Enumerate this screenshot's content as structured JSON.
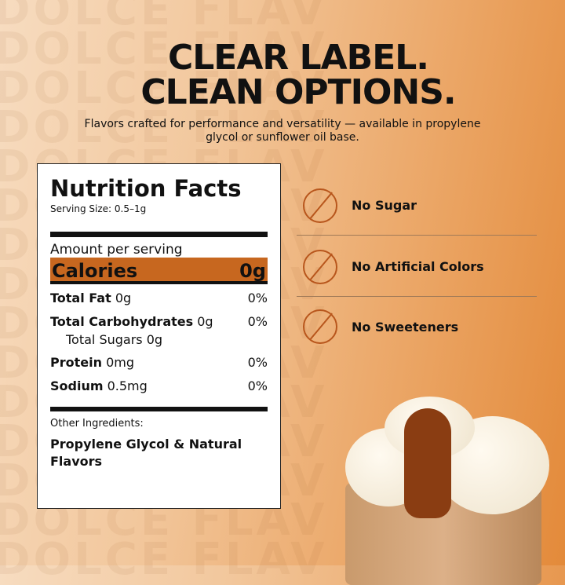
{
  "watermark": "DOLCE FLAV",
  "header": {
    "title_line1": "CLEAR LABEL.",
    "title_line2": "CLEAN OPTIONS.",
    "subtitle": "Flavors crafted for performance and versatility — available in propylene glycol or sunflower oil base."
  },
  "nutrition": {
    "title": "Nutrition Facts",
    "serving_size": "Serving Size: 0.5–1g",
    "amount_per_serving": "Amount per serving",
    "calories_label": "Calories",
    "calories_value": "0g",
    "rows": [
      {
        "label": "Total Fat",
        "value": "0g",
        "dv": "0%"
      },
      {
        "label": "Total Carbohydrates",
        "value": "0g",
        "dv": "0%"
      },
      {
        "label": "Protein",
        "value": "0mg",
        "dv": "0%"
      },
      {
        "label": "Sodium",
        "value": "0.5mg",
        "dv": "0%"
      }
    ],
    "sub_row": "Total Sugars 0g",
    "other_ingredients_label": "Other Ingredients:",
    "ingredients": "Propylene Glycol & Natural Flavors"
  },
  "features": [
    {
      "icon": "no-sugar-icon",
      "label": "No Sugar"
    },
    {
      "icon": "no-artificial-colors-icon",
      "label": "No Artificial Colors"
    },
    {
      "icon": "no-sweeteners-icon",
      "label": "No Sweeteners"
    }
  ],
  "colors": {
    "accent": "#c7671f",
    "icon": "#b8561c"
  }
}
